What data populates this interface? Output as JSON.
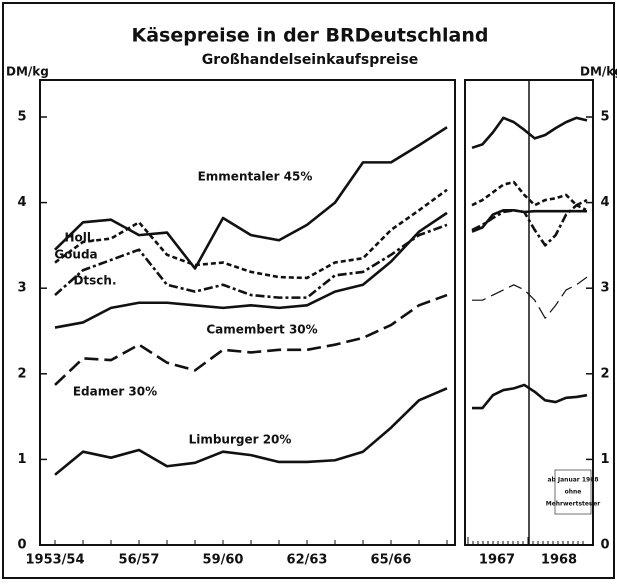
{
  "chart_data": {
    "type": "line",
    "title": "Käsepreise in der BRDeutschland",
    "subtitle": "Großhandelseinkaufspreise",
    "y_label": "DM/kg",
    "ylim": [
      0,
      5.3
    ],
    "yticks": [
      0,
      1,
      2,
      3,
      4,
      5
    ],
    "categories": [
      "1953/54",
      null,
      null,
      "56/57",
      null,
      null,
      "59/60",
      null,
      null,
      "62/63",
      null,
      null,
      "65/66",
      null,
      null
    ],
    "recent_years": [
      "1967",
      "1968"
    ],
    "gouda_label": "Gouda",
    "annotation": [
      "ab Januar 1968",
      "ohne",
      "Mehrwertsteuer"
    ],
    "series": [
      {
        "name": "Emmentaler 45%",
        "style": "solid",
        "color": "#111",
        "values": [
          3.45,
          3.77,
          3.8,
          3.62,
          3.65,
          3.23,
          3.82,
          3.62,
          3.56,
          3.74,
          4.0,
          4.47,
          4.47,
          4.67,
          4.88
        ],
        "recent_values": [
          4.64,
          4.68,
          4.82,
          4.99,
          4.94,
          4.85,
          4.75,
          4.79,
          4.87,
          4.94,
          4.99,
          4.96
        ]
      },
      {
        "name": "Holl.",
        "style": "dotted",
        "color": "#111",
        "values": [
          3.3,
          3.54,
          3.58,
          3.77,
          3.39,
          3.27,
          3.3,
          3.19,
          3.13,
          3.12,
          3.3,
          3.35,
          3.68,
          3.91,
          4.15
        ],
        "recent_values": [
          3.97,
          4.03,
          4.12,
          4.21,
          4.24,
          4.09,
          3.97,
          4.03,
          4.05,
          4.09,
          3.97,
          4.03
        ]
      },
      {
        "name": "Dtsch.",
        "style": "dashed",
        "color": "#111",
        "values": [
          2.92,
          3.21,
          3.33,
          3.45,
          3.04,
          2.96,
          3.04,
          2.92,
          2.89,
          2.89,
          3.15,
          3.19,
          3.39,
          3.62,
          3.74
        ],
        "recent_values": [
          3.68,
          3.74,
          3.82,
          3.89,
          3.91,
          3.89,
          3.68,
          3.5,
          3.62,
          3.86,
          3.97,
          3.91
        ]
      },
      {
        "name": "Camembert 30%",
        "style": "solid",
        "color": "#111",
        "values": [
          2.54,
          2.6,
          2.77,
          2.83,
          2.83,
          2.8,
          2.77,
          2.8,
          2.77,
          2.8,
          2.96,
          3.04,
          3.31,
          3.66,
          3.88
        ],
        "recent_values": [
          3.66,
          3.71,
          3.86,
          3.91,
          3.91,
          3.89,
          3.9,
          3.9,
          3.9,
          3.9,
          3.9,
          3.9
        ]
      },
      {
        "name": "Edamer 30%",
        "style": "longdash",
        "color": "#111",
        "values": [
          1.87,
          2.18,
          2.16,
          2.34,
          2.13,
          2.04,
          2.28,
          2.25,
          2.28,
          2.28,
          2.34,
          2.42,
          2.57,
          2.8,
          2.92
        ],
        "recent_values": [
          2.86,
          2.86,
          2.92,
          2.98,
          3.04,
          2.98,
          2.86,
          2.65,
          2.8,
          2.98,
          3.04,
          3.13
        ]
      },
      {
        "name": "Limburger 20%",
        "style": "solid",
        "color": "#111",
        "values": [
          0.82,
          1.09,
          1.02,
          1.11,
          0.92,
          0.96,
          1.09,
          1.05,
          0.97,
          0.97,
          0.99,
          1.09,
          1.37,
          1.69,
          1.83
        ],
        "recent_values": [
          1.6,
          1.6,
          1.75,
          1.81,
          1.83,
          1.87,
          1.79,
          1.69,
          1.67,
          1.72,
          1.73,
          1.75
        ]
      }
    ]
  }
}
